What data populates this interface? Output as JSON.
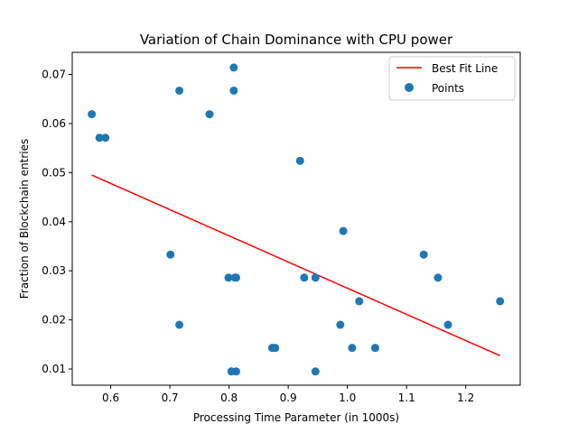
{
  "chart_data": {
    "type": "scatter",
    "title": "Variation of Chain Dominance with CPU power",
    "xlabel": "Processing Time Parameter (in 1000s)",
    "ylabel": "Fraction of Blockchain entries",
    "xlim": [
      0.535,
      1.292
    ],
    "ylim": [
      0.0067,
      0.0745
    ],
    "x_ticks": [
      "0.6",
      "0.7",
      "0.8",
      "0.9",
      "1.0",
      "1.1",
      "1.2"
    ],
    "y_ticks": [
      "0.01",
      "0.02",
      "0.03",
      "0.04",
      "0.05",
      "0.06",
      "0.07"
    ],
    "grid": false,
    "legend_position": "top-right",
    "legend": [
      "Best Fit Line",
      "Points"
    ],
    "colors": {
      "line": "#ff0000",
      "points": "#1f77b4"
    },
    "series": [
      {
        "name": "Best Fit Line",
        "kind": "line",
        "x": [
          0.568,
          1.258
        ],
        "y": [
          0.0495,
          0.0127
        ]
      },
      {
        "name": "Points",
        "kind": "scatter",
        "points": [
          [
            0.568,
            0.0619
          ],
          [
            0.581,
            0.0571
          ],
          [
            0.591,
            0.0571
          ],
          [
            0.701,
            0.0333
          ],
          [
            0.716,
            0.0667
          ],
          [
            0.716,
            0.019
          ],
          [
            0.767,
            0.0619
          ],
          [
            0.799,
            0.0286
          ],
          [
            0.804,
            0.0095
          ],
          [
            0.808,
            0.0714
          ],
          [
            0.808,
            0.0667
          ],
          [
            0.81,
            0.0286
          ],
          [
            0.812,
            0.0286
          ],
          [
            0.812,
            0.0095
          ],
          [
            0.873,
            0.0143
          ],
          [
            0.878,
            0.0143
          ],
          [
            0.92,
            0.0524
          ],
          [
            0.927,
            0.0286
          ],
          [
            0.946,
            0.0286
          ],
          [
            0.946,
            0.0095
          ],
          [
            0.988,
            0.019
          ],
          [
            0.993,
            0.0381
          ],
          [
            1.008,
            0.0143
          ],
          [
            1.02,
            0.0238
          ],
          [
            1.047,
            0.0143
          ],
          [
            1.129,
            0.0333
          ],
          [
            1.153,
            0.0286
          ],
          [
            1.17,
            0.019
          ],
          [
            1.258,
            0.0238
          ]
        ]
      }
    ]
  }
}
